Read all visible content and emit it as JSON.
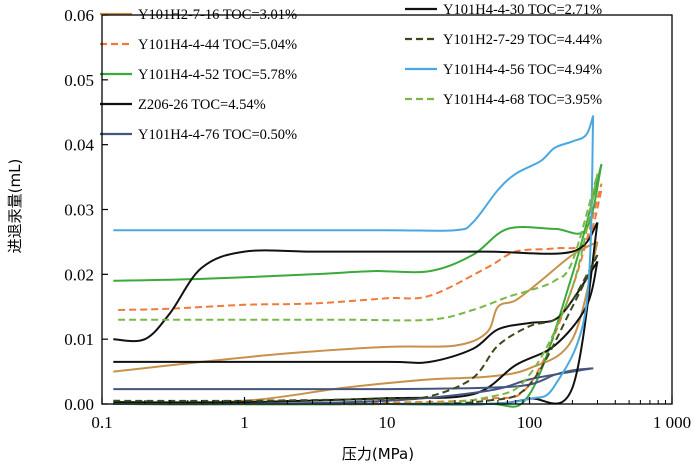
{
  "chart_data": {
    "type": "line",
    "x_scale": "log",
    "xlim": [
      0.1,
      1000
    ],
    "ylim": [
      0,
      0.06
    ],
    "xlabel": "压力(MPa)",
    "ylabel": "进退汞量(mL)",
    "x_ticks": [
      "0.1",
      "1",
      "10",
      "100",
      "1 000"
    ],
    "y_ticks": [
      "0.00",
      "0.01",
      "0.02",
      "0.03",
      "0.04",
      "0.05",
      "0.06"
    ],
    "grid": false,
    "legend_position": "top (inside, two columns)",
    "series": [
      {
        "name": "Y101H2-7-16  TOC=3.01%",
        "color": "#c8914a",
        "dash": "solid",
        "intrusion": [
          [
            0.12,
            0.005
          ],
          [
            0.5,
            0.0065
          ],
          [
            2,
            0.0078
          ],
          [
            10,
            0.0088
          ],
          [
            30,
            0.009
          ],
          [
            50,
            0.011
          ],
          [
            60,
            0.015
          ],
          [
            80,
            0.016
          ],
          [
            120,
            0.019
          ],
          [
            200,
            0.023
          ],
          [
            300,
            0.025
          ]
        ],
        "extrusion": [
          [
            0.12,
            0.0
          ],
          [
            1,
            0.0005
          ],
          [
            5,
            0.0025
          ],
          [
            20,
            0.0038
          ],
          [
            50,
            0.0042
          ],
          [
            100,
            0.0055
          ],
          [
            200,
            0.01
          ],
          [
            300,
            0.025
          ]
        ]
      },
      {
        "name": "Y101H4-4-44  TOC=5.04%",
        "color": "#f07a3a",
        "dash": "dash",
        "intrusion": [
          [
            0.13,
            0.0145
          ],
          [
            0.3,
            0.0147
          ],
          [
            1,
            0.0153
          ],
          [
            3,
            0.0155
          ],
          [
            10,
            0.0163
          ],
          [
            20,
            0.0167
          ],
          [
            50,
            0.021
          ],
          [
            80,
            0.0235
          ],
          [
            150,
            0.024
          ],
          [
            250,
            0.025
          ],
          [
            320,
            0.033
          ]
        ],
        "extrusion": [
          [
            0.13,
            0.0
          ],
          [
            1,
            0.0
          ],
          [
            10,
            0.0002
          ],
          [
            50,
            0.0008
          ],
          [
            100,
            0.003
          ],
          [
            200,
            0.018
          ],
          [
            320,
            0.034
          ]
        ]
      },
      {
        "name": "Y101H4-4-52  TOC=5.78%",
        "color": "#3aaa3a",
        "dash": "solid",
        "intrusion": [
          [
            0.12,
            0.019
          ],
          [
            0.5,
            0.0193
          ],
          [
            3,
            0.02
          ],
          [
            8,
            0.0205
          ],
          [
            20,
            0.0205
          ],
          [
            40,
            0.023
          ],
          [
            70,
            0.027
          ],
          [
            150,
            0.027
          ],
          [
            250,
            0.027
          ],
          [
            320,
            0.037
          ]
        ],
        "extrusion": [
          [
            0.12,
            0.0
          ],
          [
            1,
            0.0
          ],
          [
            10,
            0.0
          ],
          [
            50,
            0.0
          ],
          [
            100,
            0.0015
          ],
          [
            200,
            0.02
          ],
          [
            320,
            0.037
          ]
        ]
      },
      {
        "name": "Z206-26  TOC=4.54%",
        "color": "#111111",
        "dash": "solid",
        "intrusion": [
          [
            0.12,
            0.0065
          ],
          [
            1,
            0.0065
          ],
          [
            10,
            0.0065
          ],
          [
            20,
            0.0065
          ],
          [
            40,
            0.0085
          ],
          [
            60,
            0.0115
          ],
          [
            100,
            0.0125
          ],
          [
            150,
            0.013
          ],
          [
            200,
            0.016
          ],
          [
            300,
            0.022
          ]
        ],
        "extrusion": [
          [
            0.12,
            0.0003
          ],
          [
            1,
            0.0003
          ],
          [
            10,
            0.0009
          ],
          [
            40,
            0.0015
          ],
          [
            80,
            0.006
          ],
          [
            150,
            0.009
          ],
          [
            250,
            0.015
          ],
          [
            300,
            0.022
          ]
        ]
      },
      {
        "name": "Y101H4-4-76  TOC=0.50%",
        "color": "#44567e",
        "dash": "solid",
        "intrusion": [
          [
            0.12,
            0.0023
          ],
          [
            1,
            0.0023
          ],
          [
            10,
            0.0023
          ],
          [
            50,
            0.0025
          ],
          [
            100,
            0.003
          ],
          [
            150,
            0.0045
          ],
          [
            200,
            0.0052
          ],
          [
            280,
            0.0055
          ]
        ],
        "extrusion": [
          [
            0.12,
            0.0
          ],
          [
            1,
            0.0
          ],
          [
            10,
            0.0005
          ],
          [
            50,
            0.002
          ],
          [
            100,
            0.0038
          ],
          [
            200,
            0.005
          ],
          [
            280,
            0.0055
          ]
        ]
      },
      {
        "name": "Y101H4-4-30  TOC=2.71%",
        "color": "#111111",
        "dash": "solid",
        "intrusion": [
          [
            0.12,
            0.01
          ],
          [
            0.2,
            0.01
          ],
          [
            0.3,
            0.014
          ],
          [
            0.5,
            0.021
          ],
          [
            1,
            0.0235
          ],
          [
            3,
            0.0235
          ],
          [
            10,
            0.0235
          ],
          [
            50,
            0.0235
          ],
          [
            200,
            0.0235
          ],
          [
            300,
            0.028
          ]
        ],
        "extrusion": [
          [
            0.12,
            0.0
          ],
          [
            10,
            0.0
          ],
          [
            50,
            0.0
          ],
          [
            100,
            0.0008
          ],
          [
            200,
            0.0025
          ],
          [
            300,
            0.028
          ]
        ]
      },
      {
        "name": "Y101H2-7-29  TOC=4.44%",
        "color": "#3a4a1c",
        "dash": "dash",
        "intrusion": [
          [
            0.12,
            0.0005
          ],
          [
            1,
            0.0005
          ],
          [
            10,
            0.0008
          ],
          [
            20,
            0.0012
          ],
          [
            40,
            0.004
          ],
          [
            60,
            0.009
          ],
          [
            100,
            0.012
          ],
          [
            150,
            0.013
          ],
          [
            200,
            0.016
          ],
          [
            300,
            0.023
          ]
        ],
        "extrusion": [
          [
            0.12,
            0.0
          ],
          [
            10,
            0.0
          ],
          [
            50,
            0.0005
          ],
          [
            100,
            0.003
          ],
          [
            200,
            0.015
          ],
          [
            300,
            0.023
          ]
        ]
      },
      {
        "name": "Y101H4-4-56  TOC=4.94%",
        "color": "#4aa8e0",
        "dash": "solid",
        "intrusion": [
          [
            0.12,
            0.0268
          ],
          [
            1,
            0.0268
          ],
          [
            10,
            0.0268
          ],
          [
            30,
            0.0268
          ],
          [
            40,
            0.028
          ],
          [
            60,
            0.033
          ],
          [
            80,
            0.0355
          ],
          [
            120,
            0.0375
          ],
          [
            150,
            0.0395
          ],
          [
            200,
            0.0405
          ],
          [
            250,
            0.0415
          ],
          [
            280,
            0.0445
          ]
        ],
        "extrusion": [
          [
            0.12,
            0.0
          ],
          [
            10,
            0.0
          ],
          [
            50,
            0.0
          ],
          [
            100,
            0.0008
          ],
          [
            150,
            0.0028
          ],
          [
            250,
            0.015
          ],
          [
            280,
            0.0445
          ]
        ]
      },
      {
        "name": "Y101H4-4-68  TOC=3.95%",
        "color": "#7ab648",
        "dash": "dash",
        "intrusion": [
          [
            0.13,
            0.013
          ],
          [
            1,
            0.013
          ],
          [
            5,
            0.013
          ],
          [
            20,
            0.013
          ],
          [
            40,
            0.0145
          ],
          [
            70,
            0.0165
          ],
          [
            100,
            0.0175
          ],
          [
            150,
            0.019
          ],
          [
            200,
            0.022
          ],
          [
            300,
            0.0355
          ]
        ],
        "extrusion": [
          [
            0.13,
            0.0
          ],
          [
            10,
            0.0
          ],
          [
            50,
            0.001
          ],
          [
            100,
            0.0045
          ],
          [
            200,
            0.018
          ],
          [
            300,
            0.0355
          ]
        ]
      }
    ]
  },
  "legend_columns": [
    [
      0,
      1,
      2,
      3,
      4
    ],
    [
      5,
      6,
      7,
      8
    ]
  ]
}
